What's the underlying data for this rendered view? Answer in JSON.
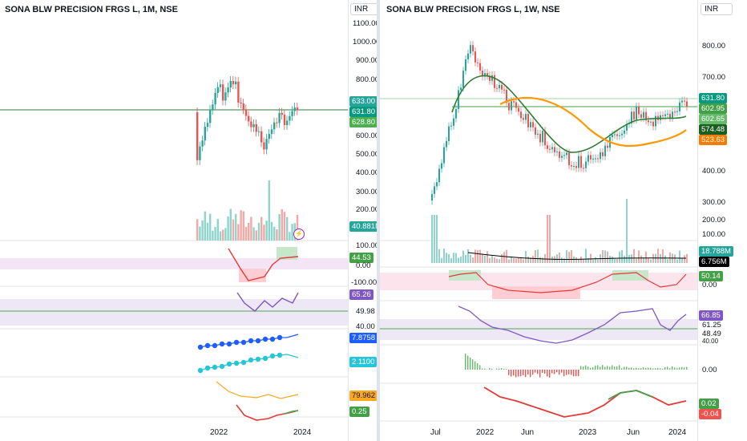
{
  "left": {
    "title": "SONA BLW PRECISION FRGS L, 1M, NSE",
    "currency": "INR",
    "price_axis": [
      "1100.00",
      "1000.00",
      "900.00",
      "800.00",
      "700.00",
      "600.00",
      "500.00",
      "400.00",
      "300.00",
      "200.00",
      "100.00"
    ],
    "price_badges": [
      {
        "text": "633.00",
        "color": "#26a69a"
      },
      {
        "text": "631.80",
        "color": "#089981"
      },
      {
        "text": "628.80",
        "color": "#4caf50"
      }
    ],
    "volume_badge": "40.881M",
    "osc_axis": [
      "100.00",
      "0.00",
      "-100.00"
    ],
    "osc_badge": "44.53",
    "rsi_axis": [
      "49.98",
      "40.00"
    ],
    "rsi_badge": "65.26",
    "ind1_badge": "7.8758",
    "ind2_badge": "2.1100",
    "ind3_badge": "79.962",
    "ind4_badge": "0.25",
    "x_labels": [
      "2022",
      "2024"
    ]
  },
  "right": {
    "title": "SONA BLW PRECISION FRGS L, 1W, NSE",
    "currency": "INR",
    "price_axis": [
      "800.00",
      "700.00",
      "400.00",
      "300.00",
      "200.00",
      "100.00"
    ],
    "price_badges": [
      {
        "text": "631.80",
        "color": "#089981"
      },
      {
        "text": "602.95",
        "color": "#43a047"
      },
      {
        "text": "602.65",
        "color": "#66bb6a"
      },
      {
        "text": "574.48",
        "color": "#1b5e20"
      },
      {
        "text": "523.63",
        "color": "#f57c00"
      }
    ],
    "volume_badges": [
      {
        "text": "18.788M",
        "color": "#26a69a"
      },
      {
        "text": "6.756M",
        "color": "#000000"
      }
    ],
    "osc_badge": "50.14",
    "osc_axis": [
      "0.00"
    ],
    "rsi_badge": "66.85",
    "rsi_axis": [
      "61.25",
      "48.49",
      "40.00"
    ],
    "hist_axis": "0.00",
    "ind_badges": [
      {
        "text": "0.02",
        "color": "#43a047"
      },
      {
        "text": "-0.04",
        "color": "#ef5350"
      }
    ],
    "x_labels": [
      "Jul",
      "2022",
      "Jun",
      "2023",
      "Jun",
      "2024"
    ]
  },
  "colors": {
    "up": "#26a69a",
    "down": "#ef5350",
    "ma_green": "#2e7d32",
    "ma_orange": "#ff9800",
    "rsi": "#7e57c2",
    "blue": "#1e5eff",
    "cyan": "#26c6da",
    "gold": "#f9a825"
  }
}
